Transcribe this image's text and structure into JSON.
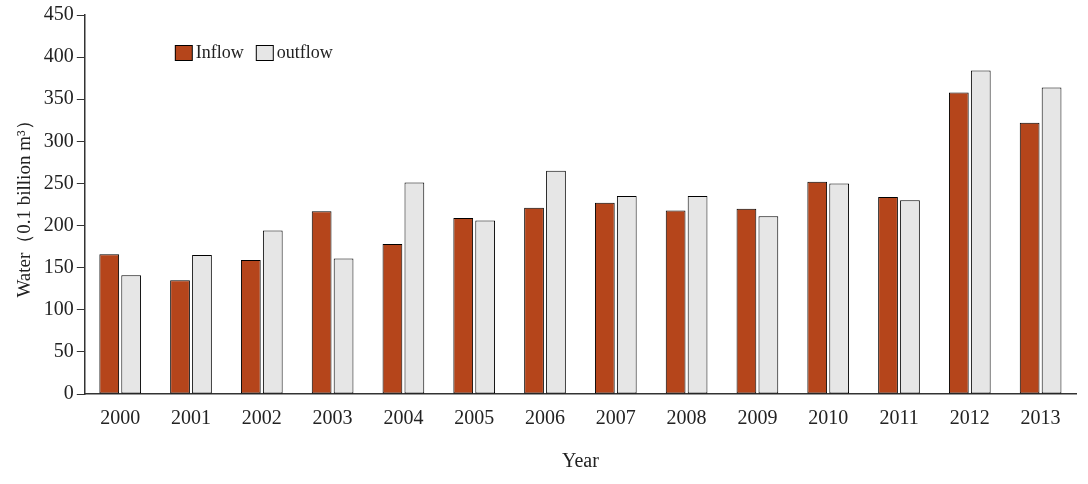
{
  "chart_data": {
    "type": "bar",
    "xlabel": "Year",
    "ylabel": "Water（0.1 billion m³）",
    "categories": [
      "2000",
      "2001",
      "2002",
      "2003",
      "2004",
      "2005",
      "2006",
      "2007",
      "2008",
      "2009",
      "2010",
      "2011",
      "2012",
      "2013"
    ],
    "series": [
      {
        "name": "Inflow",
        "color": "#b5451b",
        "values": [
          166,
          135,
          159,
          217,
          178,
          209,
          221,
          227,
          218,
          220,
          252,
          234,
          358,
          322
        ]
      },
      {
        "name": "outflow",
        "color": "#e6e6e6",
        "values": [
          141,
          165,
          194,
          161,
          251,
          206,
          265,
          235,
          235,
          211,
          250,
          230,
          384,
          364
        ]
      }
    ],
    "ylim": [
      0,
      450
    ],
    "yticks": [
      0,
      50,
      100,
      150,
      200,
      250,
      300,
      350,
      400,
      450
    ],
    "grid": false,
    "legend": "top left"
  }
}
